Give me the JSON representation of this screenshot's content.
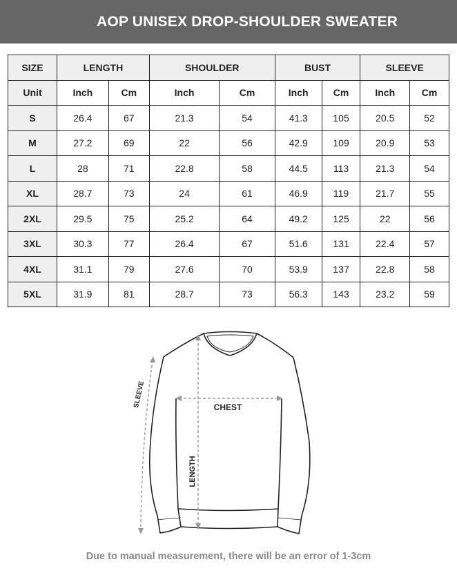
{
  "title": "AOP UNISEX DROP-SHOULDER SWEATER",
  "table": {
    "headers": [
      "SIZE",
      "LENGTH",
      "SHOULDER",
      "BUST",
      "SLEEVE"
    ],
    "unit_label": "Unit",
    "units": [
      "Inch",
      "Cm",
      "Inch",
      "Cm",
      "Inch",
      "Cm",
      "Inch",
      "Cm"
    ],
    "rows": [
      [
        "S",
        "26.4",
        "67",
        "21.3",
        "54",
        "41.3",
        "105",
        "20.5",
        "52"
      ],
      [
        "M",
        "27.2",
        "69",
        "22",
        "56",
        "42.9",
        "109",
        "20.9",
        "53"
      ],
      [
        "L",
        "28",
        "71",
        "22.8",
        "58",
        "44.5",
        "113",
        "21.3",
        "54"
      ],
      [
        "XL",
        "28.7",
        "73",
        "24",
        "61",
        "46.9",
        "119",
        "21.7",
        "55"
      ],
      [
        "2XL",
        "29.5",
        "75",
        "25.2",
        "64",
        "49.2",
        "125",
        "22",
        "56"
      ],
      [
        "3XL",
        "30.3",
        "77",
        "26.4",
        "67",
        "51.6",
        "131",
        "22.4",
        "57"
      ],
      [
        "4XL",
        "31.1",
        "79",
        "27.6",
        "70",
        "53.9",
        "137",
        "22.8",
        "58"
      ],
      [
        "5XL",
        "31.9",
        "81",
        "28.7",
        "73",
        "56.3",
        "143",
        "23.2",
        "59"
      ]
    ]
  },
  "diagram": {
    "chest_label": "CHEST",
    "length_label": "LENGTH",
    "sleeve_label": "SLEEVE"
  },
  "note": "Due to manual measurement, there will be an error of 1-3cm"
}
